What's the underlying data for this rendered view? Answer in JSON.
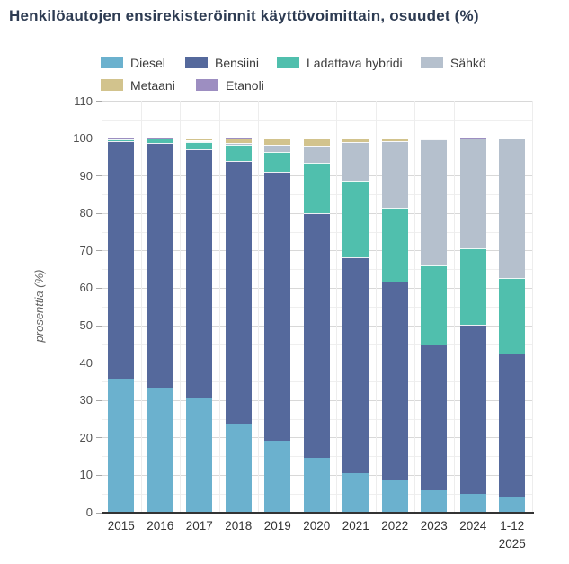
{
  "title": "Henkilöautojen ensirekisteröinnit käyttövoimittain, osuudet (%)",
  "y_axis": {
    "title": "prosenttia (%)",
    "tick_labels": [
      "0",
      "10",
      "20",
      "30",
      "40",
      "50",
      "60",
      "70",
      "80",
      "90",
      "100",
      "110"
    ]
  },
  "legend_rows": [
    [
      "Diesel",
      "Bensiini",
      "Ladattava hybridi",
      "Sähkö"
    ],
    [
      "Metaani",
      "Etanoli"
    ]
  ],
  "chart_data": {
    "type": "bar",
    "stacked": true,
    "title": "Henkilöautojen ensirekisteröinnit käyttövoimittain, osuudet (%)",
    "xlabel": "",
    "ylabel": "prosenttia (%)",
    "ylim": [
      0,
      110
    ],
    "grid": "horizontal major every 10, minor every 5, faint vertical category separators",
    "legend_position": "top",
    "categories": [
      "2015",
      "2016",
      "2017",
      "2018",
      "2019",
      "2020",
      "2021",
      "2022",
      "2023",
      "2024",
      "1-12 2025"
    ],
    "series": [
      {
        "name": "Diesel",
        "color": "#6bb1ce",
        "values": [
          35.6,
          33.2,
          30.3,
          23.8,
          19.2,
          14.6,
          10.5,
          8.5,
          5.8,
          4.9,
          4.0
        ]
      },
      {
        "name": "Bensiini",
        "color": "#55699c",
        "values": [
          63.6,
          65.4,
          66.7,
          70.0,
          71.8,
          65.4,
          57.7,
          53.1,
          39.0,
          45.2,
          38.5
        ]
      },
      {
        "name": "Ladattava hybridi",
        "color": "#50bfad",
        "values": [
          0.5,
          1.2,
          1.9,
          4.3,
          5.2,
          13.5,
          20.4,
          19.8,
          21.2,
          20.5,
          20.2
        ]
      },
      {
        "name": "Sähkö",
        "color": "#b5c0cd",
        "values": [
          0.2,
          0.1,
          0.4,
          0.7,
          1.9,
          4.5,
          10.3,
          17.9,
          33.7,
          29.2,
          37.1
        ]
      },
      {
        "name": "Metaani",
        "color": "#d2c38d",
        "values": [
          0.1,
          0.1,
          0.6,
          1.2,
          1.8,
          1.9,
          1.0,
          0.5,
          0.2,
          0.2,
          0.1
        ]
      },
      {
        "name": "Etanoli",
        "color": "#9d8ec1",
        "values": [
          0.05,
          0.05,
          0.1,
          0.05,
          0.1,
          0.1,
          0.1,
          0.05,
          0.05,
          0.05,
          0.05
        ]
      }
    ]
  }
}
